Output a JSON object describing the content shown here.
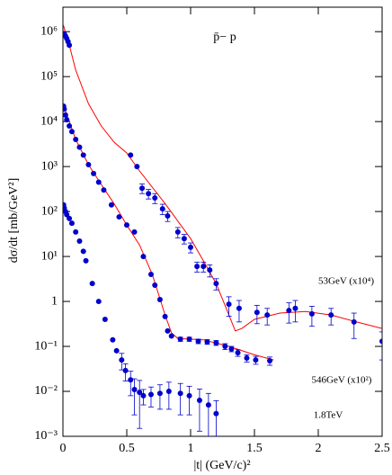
{
  "chart_data": {
    "type": "scatter",
    "title": "p̄− p",
    "xlabel": "|t| (GeV/c)²",
    "ylabel": "dσ/dt [mb/GeV²]",
    "log_y": true,
    "xlim": [
      0,
      2.5
    ],
    "ylim": [
      0.001,
      3500000
    ],
    "xticks": [
      0,
      0.5,
      1,
      1.5,
      2,
      2.5
    ],
    "yticks": [
      {
        "value": 0.001,
        "label": "10⁻³"
      },
      {
        "value": 0.01,
        "label": "10⁻²"
      },
      {
        "value": 0.1,
        "label": "10⁻¹"
      },
      1,
      {
        "value": 10,
        "label": "10¹"
      },
      {
        "value": 100,
        "label": "10²"
      },
      {
        "value": 1000,
        "label": "10³"
      },
      {
        "value": 10000,
        "label": "10⁴"
      },
      {
        "value": 100000,
        "label": "10⁵"
      },
      {
        "value": 1000000,
        "label": "10⁶"
      }
    ],
    "series": [
      {
        "name": "53GeV (x10⁴)",
        "color": "#0000cc",
        "x": [
          0.01,
          0.02,
          0.03,
          0.04,
          0.05,
          0.53,
          0.58,
          0.62,
          0.67,
          0.72,
          0.78,
          0.82,
          0.9,
          0.95,
          1.0,
          1.05,
          1.1,
          1.15,
          1.2,
          1.3,
          1.38,
          1.52,
          1.6,
          1.77,
          1.82,
          1.95,
          2.1,
          2.28,
          2.5
        ],
        "values": [
          900000,
          800000,
          700000,
          600000,
          500000,
          1800,
          1000,
          330,
          250,
          200,
          115,
          80,
          35,
          25,
          16,
          6,
          6,
          5,
          2.5,
          0.87,
          0.7,
          0.57,
          0.5,
          0.63,
          0.7,
          0.53,
          0.5,
          0.35,
          0.13
        ],
        "errors": [
          null,
          null,
          null,
          null,
          null,
          null,
          null,
          80,
          60,
          50,
          30,
          20,
          9,
          6,
          4,
          1.5,
          1.5,
          1.5,
          0.7,
          0.4,
          0.35,
          0.25,
          0.2,
          0.3,
          0.35,
          0.25,
          0.2,
          0.2,
          0.08
        ]
      },
      {
        "name": "546GeV (x10²)",
        "color": "#0000cc",
        "x": [
          0.005,
          0.01,
          0.02,
          0.03,
          0.05,
          0.07,
          0.1,
          0.13,
          0.16,
          0.2,
          0.24,
          0.28,
          0.32,
          0.38,
          0.44,
          0.5,
          0.56,
          0.63,
          0.69,
          0.72,
          0.76,
          0.8,
          0.82,
          0.85,
          0.92,
          0.99,
          1.06,
          1.13,
          1.2,
          1.27,
          1.32,
          1.37,
          1.44,
          1.51,
          1.62
        ],
        "values": [
          22000,
          19000,
          14000,
          11000,
          8000,
          6000,
          4000,
          2700,
          1800,
          1100,
          700,
          450,
          300,
          140,
          76,
          50,
          35,
          10,
          4,
          2.3,
          1.1,
          0.46,
          0.22,
          0.17,
          0.145,
          0.145,
          0.13,
          0.126,
          0.12,
          0.1,
          0.088,
          0.072,
          0.055,
          0.05,
          0.048
        ],
        "errors": [
          null,
          null,
          null,
          null,
          null,
          null,
          null,
          null,
          null,
          null,
          null,
          null,
          null,
          null,
          null,
          null,
          null,
          null,
          null,
          null,
          null,
          null,
          null,
          null,
          0.015,
          0.015,
          0.015,
          0.015,
          0.015,
          0.015,
          0.012,
          0.012,
          0.01,
          0.01,
          0.01
        ]
      },
      {
        "name": "1.8TeV",
        "color": "#0000cc",
        "x": [
          0.005,
          0.01,
          0.02,
          0.03,
          0.05,
          0.07,
          0.1,
          0.13,
          0.16,
          0.18,
          0.23,
          0.28,
          0.33,
          0.39,
          0.42,
          0.46,
          0.49,
          0.53,
          0.56,
          0.6,
          0.63,
          0.69,
          0.76,
          0.83,
          0.92,
          0.99,
          1.07,
          1.14,
          1.2
        ],
        "values": [
          140,
          120,
          100,
          85,
          70,
          55,
          35,
          22,
          13,
          8,
          2.5,
          1,
          0.4,
          0.14,
          0.08,
          0.05,
          0.029,
          0.018,
          0.011,
          0.0095,
          0.008,
          0.0085,
          0.009,
          0.01,
          0.009,
          0.008,
          0.0063,
          0.005,
          0.0032
        ],
        "errors": [
          null,
          null,
          null,
          null,
          null,
          null,
          null,
          null,
          null,
          null,
          null,
          null,
          null,
          null,
          null,
          0.02,
          0.012,
          0.01,
          0.008,
          0.008,
          0.003,
          0.004,
          0.005,
          0.006,
          0.006,
          0.005,
          0.005,
          0.004,
          0.003
        ]
      }
    ],
    "fits": [
      {
        "color": "#ff0000",
        "x": [
          0,
          0.05,
          0.1,
          0.2,
          0.3,
          0.4,
          0.5,
          0.6,
          0.8,
          1.0,
          1.1,
          1.2,
          1.3,
          1.35,
          1.4,
          1.5,
          1.7,
          1.9,
          2.1,
          2.3,
          2.5
        ],
        "values": [
          1500000,
          500000,
          140000,
          25000,
          8000,
          3500,
          2000,
          800,
          150,
          25,
          8,
          2.5,
          0.5,
          0.22,
          0.25,
          0.4,
          0.55,
          0.6,
          0.5,
          0.35,
          0.25
        ]
      },
      {
        "color": "#ff0000",
        "x": [
          0,
          0.1,
          0.2,
          0.3,
          0.4,
          0.5,
          0.6,
          0.7,
          0.8,
          0.85,
          0.9,
          1.1,
          1.3,
          1.5,
          1.65
        ],
        "values": [
          25000,
          4000,
          1100,
          400,
          150,
          50,
          18,
          4,
          0.5,
          0.2,
          0.15,
          0.14,
          0.1,
          0.065,
          0.05
        ]
      }
    ]
  }
}
